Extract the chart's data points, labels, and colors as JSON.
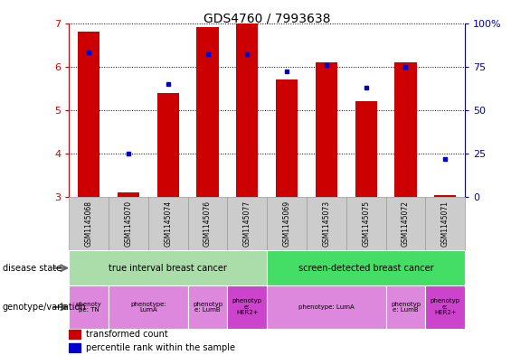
{
  "title": "GDS4760 / 7993638",
  "samples": [
    "GSM1145068",
    "GSM1145070",
    "GSM1145074",
    "GSM1145076",
    "GSM1145077",
    "GSM1145069",
    "GSM1145073",
    "GSM1145075",
    "GSM1145072",
    "GSM1145071"
  ],
  "bar_bottoms": [
    3.0,
    3.0,
    3.0,
    3.0,
    3.0,
    3.0,
    3.0,
    3.0,
    3.0,
    3.0
  ],
  "bar_tops": [
    6.8,
    3.1,
    5.4,
    6.9,
    7.0,
    5.7,
    6.1,
    5.2,
    6.1,
    3.05
  ],
  "percentile_values": [
    83,
    25,
    65,
    82,
    82,
    72,
    76,
    63,
    75,
    22
  ],
  "ylim_left": [
    3,
    7
  ],
  "ylim_right": [
    0,
    100
  ],
  "yticks_left": [
    3,
    4,
    5,
    6,
    7
  ],
  "yticks_right": [
    0,
    25,
    50,
    75,
    100
  ],
  "ytick_labels_right": [
    "0",
    "25",
    "50",
    "75",
    "100%"
  ],
  "bar_color": "#cc0000",
  "dot_color": "#0000cc",
  "axis_color_left": "#cc0000",
  "axis_color_right": "#0000bb",
  "disease_state_groups": [
    {
      "label": "true interval breast cancer",
      "start": 0,
      "end": 4,
      "color": "#aaddaa"
    },
    {
      "label": "screen-detected breast cancer",
      "start": 5,
      "end": 9,
      "color": "#44dd66"
    }
  ],
  "genotype_groups": [
    {
      "label": "phenotype:\npe: TN",
      "short": "phenoty\npe: TN",
      "start": 0,
      "end": 0,
      "color": "#dd88dd"
    },
    {
      "label": "phenotype:\nLumA",
      "short": "phenotype:\nLumA",
      "start": 1,
      "end": 2,
      "color": "#dd88dd"
    },
    {
      "label": "phenotype:\ne: LumB",
      "short": "phenotyp\ne: LumB",
      "start": 3,
      "end": 3,
      "color": "#dd88dd"
    },
    {
      "label": "phenotyp\ne:\nHER2+",
      "short": "phenotyp\ne:\nHER2+",
      "start": 4,
      "end": 4,
      "color": "#cc44cc"
    },
    {
      "label": "phenotype: LumA",
      "short": "phenotype: LumA",
      "start": 5,
      "end": 7,
      "color": "#dd88dd"
    },
    {
      "label": "phenotyp\ne: LumB",
      "short": "phenotyp\ne: LumB",
      "start": 8,
      "end": 8,
      "color": "#dd88dd"
    },
    {
      "label": "phenotyp\ne:\nHER2+",
      "short": "phenotyp\ne:\nHER2+",
      "start": 9,
      "end": 9,
      "color": "#cc44cc"
    }
  ],
  "label_disease_state": "disease state",
  "label_genotype": "genotype/variation",
  "legend_items": [
    {
      "label": "transformed count",
      "color": "#cc0000"
    },
    {
      "label": "percentile rank within the sample",
      "color": "#0000cc"
    }
  ],
  "sample_bg_color": "#cccccc",
  "sample_border_color": "#999999"
}
